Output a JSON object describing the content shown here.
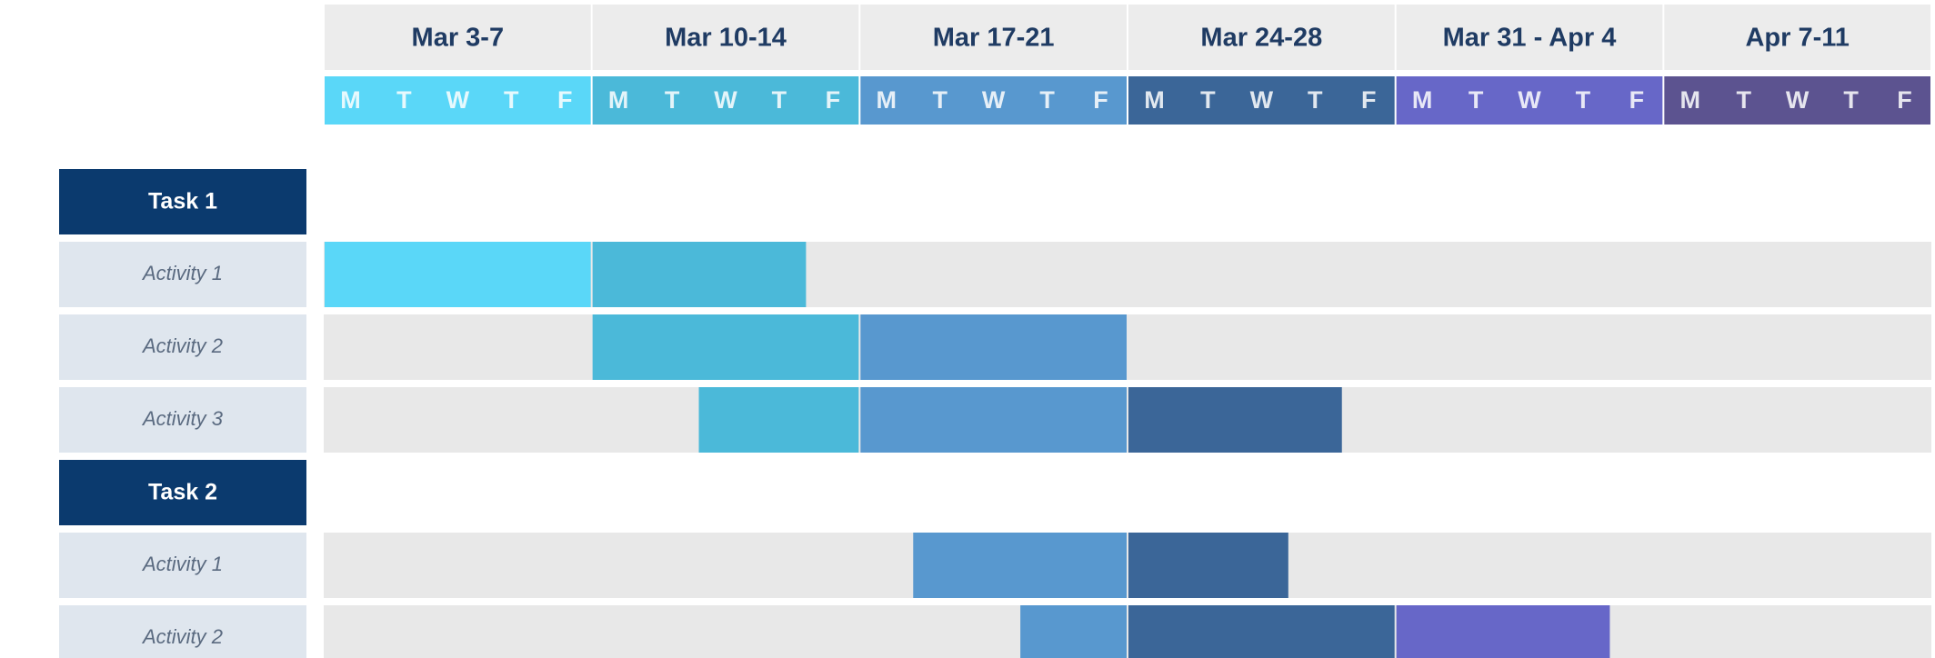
{
  "chart_data": {
    "type": "gantt",
    "weeks": [
      {
        "label": "Mar 3-7",
        "color": "#5ad7f8"
      },
      {
        "label": "Mar 10-14",
        "color": "#4bb9d9"
      },
      {
        "label": "Mar 17-21",
        "color": "#5898cf"
      },
      {
        "label": "Mar 24-28",
        "color": "#3b6698"
      },
      {
        "label": "Mar 31 - Apr 4",
        "color": "#6767c8"
      },
      {
        "label": "Apr 7-11",
        "color": "#5c5390"
      }
    ],
    "days": [
      "M",
      "T",
      "W",
      "T",
      "F"
    ],
    "xlim": [
      0,
      30
    ],
    "tasks": [
      {
        "name": "Task 1",
        "activities": [
          {
            "name": "Activity 1",
            "start": 0,
            "end": 9
          },
          {
            "name": "Activity 2",
            "start": 5,
            "end": 15
          },
          {
            "name": "Activity 3",
            "start": 7,
            "end": 19
          }
        ]
      },
      {
        "name": "Task 2",
        "activities": [
          {
            "name": "Activity 1",
            "start": 11,
            "end": 18
          },
          {
            "name": "Activity 2",
            "start": 13,
            "end": 24
          }
        ]
      }
    ]
  }
}
